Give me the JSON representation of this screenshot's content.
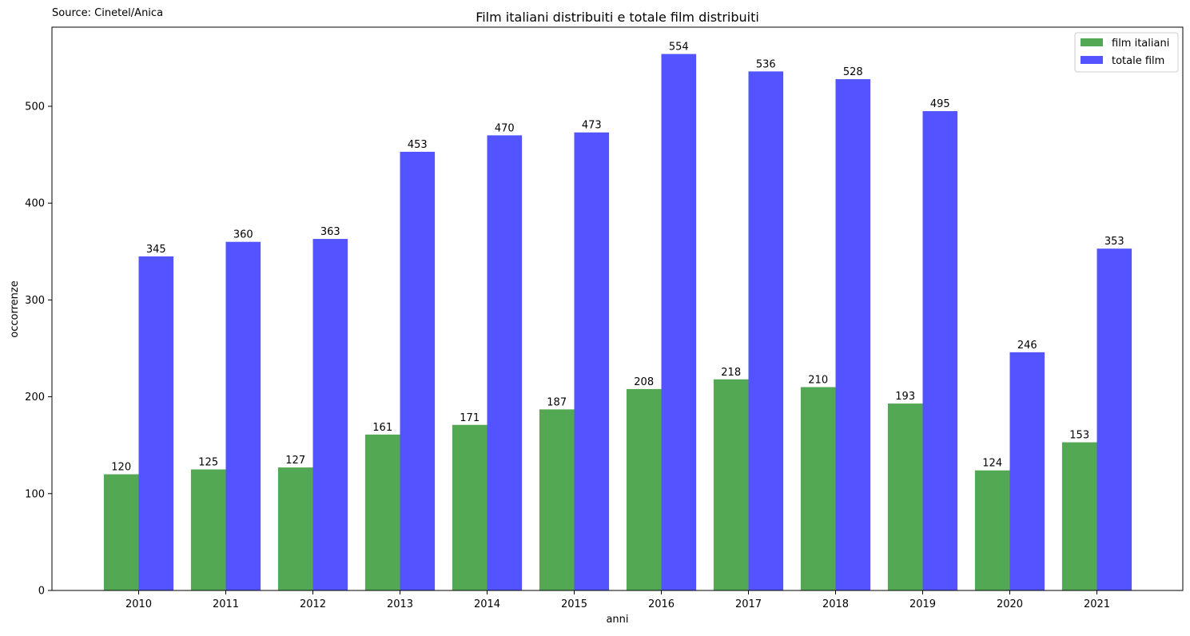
{
  "source_note": "Source: Cinetel/Anica",
  "chart_data": {
    "type": "bar",
    "title": "Film italiani distribuiti e totale film distribuiti",
    "xlabel": "anni",
    "ylabel": "occorrenze",
    "categories": [
      "2010",
      "2011",
      "2012",
      "2013",
      "2014",
      "2015",
      "2016",
      "2017",
      "2018",
      "2019",
      "2020",
      "2021"
    ],
    "series": [
      {
        "name": "film italiani",
        "color": "#53a853",
        "values": [
          120,
          125,
          127,
          161,
          171,
          187,
          208,
          218,
          210,
          193,
          124,
          153
        ]
      },
      {
        "name": "totale film",
        "color": "#5353ff",
        "values": [
          345,
          360,
          363,
          453,
          470,
          473,
          554,
          536,
          528,
          495,
          246,
          353
        ]
      }
    ],
    "ylim": [
      0,
      581.7
    ],
    "yticks": [
      0,
      100,
      200,
      300,
      400,
      500
    ],
    "grid": false,
    "legend_position": "top-right",
    "data_labels": true
  }
}
